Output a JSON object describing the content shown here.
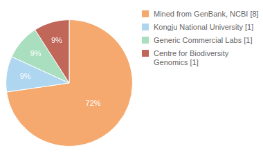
{
  "chart_data": {
    "type": "pie",
    "categories": [
      "Mined from GenBank, NCBI [8]",
      "Kongju National University [1]",
      "Generic Commercial Labs [1]",
      "Centre for Biodiversity\nGenomics [1]"
    ],
    "values": [
      72,
      9,
      9,
      9
    ],
    "value_labels": [
      "72%",
      "9%",
      "9%",
      "9%"
    ],
    "colors": [
      "#F5A96E",
      "#AED6F1",
      "#A9DFBF",
      "#C0675A"
    ],
    "data_labels": true,
    "legend": "right"
  }
}
